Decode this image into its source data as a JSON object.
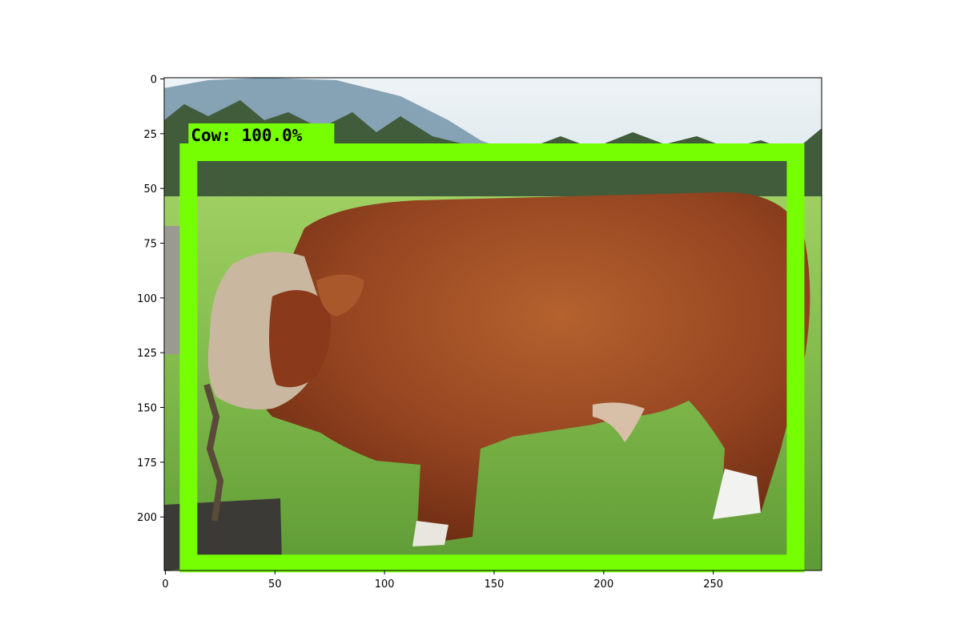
{
  "image": {
    "x_ticks": [
      "0",
      "50",
      "100",
      "150",
      "200",
      "250"
    ],
    "y_ticks": [
      "0",
      "25",
      "50",
      "75",
      "100",
      "125",
      "150",
      "175",
      "200"
    ],
    "x_range": [
      0,
      300
    ],
    "y_range": [
      0,
      225
    ],
    "detection": {
      "label": "Cow:  100.0%",
      "class": "Cow",
      "score_percent": 100.0,
      "box_data": {
        "x_min": 10,
        "y_min": 30,
        "x_max": 287,
        "y_max": 224
      },
      "color": "#76ff03"
    },
    "colors": {
      "sky": "#dfe9ee",
      "mountains": "#7f9fb5",
      "trees": "#3f5a3a",
      "grass": "#7fbf4a",
      "bull": "#9b4a22",
      "box": "#76ff03"
    }
  }
}
